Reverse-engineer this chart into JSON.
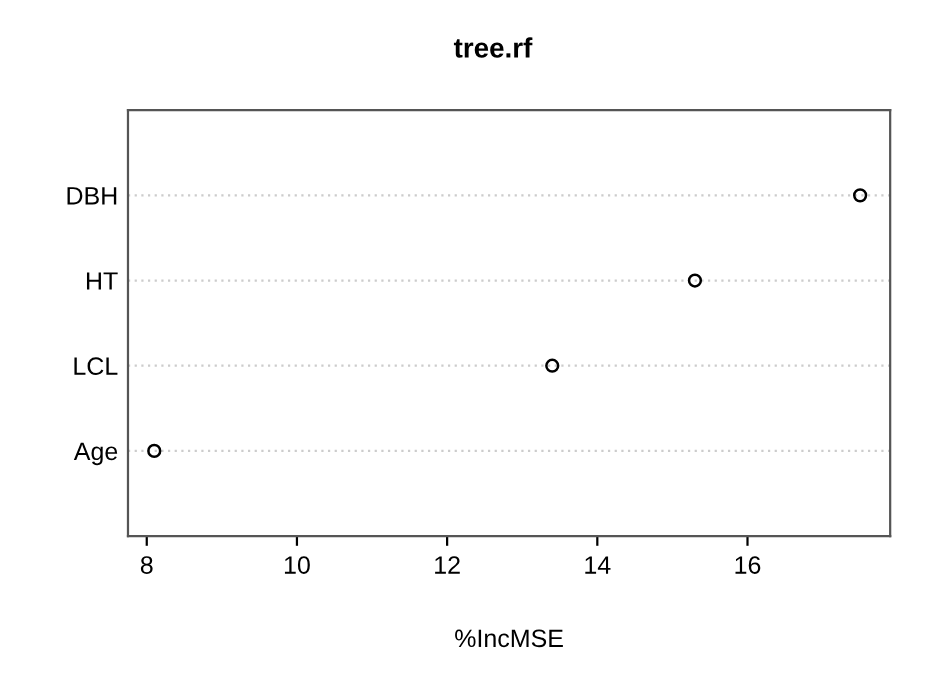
{
  "chart_data": {
    "type": "scatter",
    "title": "tree.rf",
    "xlabel": "%IncMSE",
    "orientation": "horizontal",
    "categories": [
      "DBH",
      "HT",
      "LCL",
      "Age"
    ],
    "values": [
      17.5,
      15.3,
      13.4,
      8.1
    ],
    "color": "#000000",
    "xlim": [
      7.75,
      17.9
    ],
    "xticks": [
      8,
      10,
      12,
      14,
      16
    ],
    "grid": "y",
    "marker": "circle"
  }
}
